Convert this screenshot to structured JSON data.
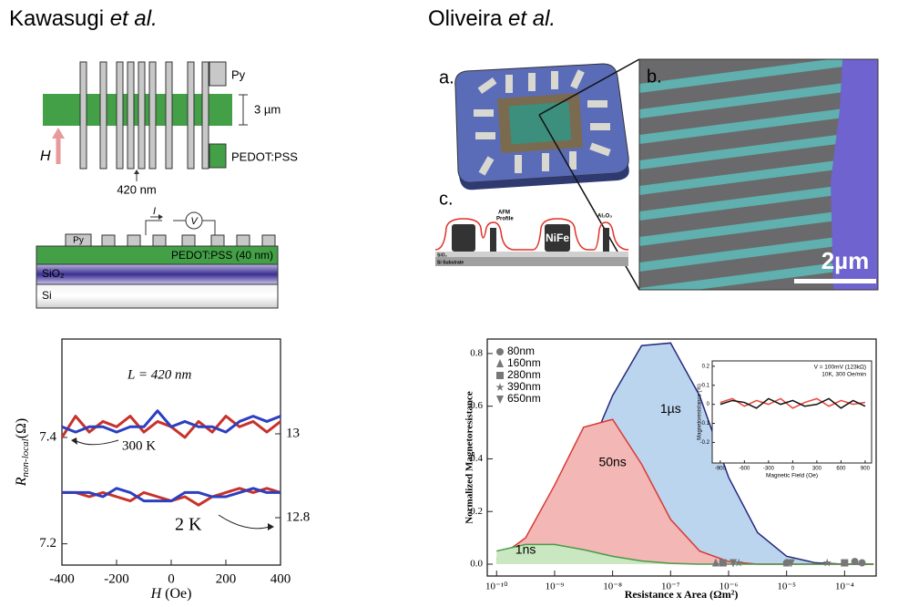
{
  "figure_left": {
    "heading": {
      "author": "Kawasugi",
      "suffix": "et al."
    },
    "schematic": {
      "legend_py": "Py",
      "legend_pedot": "PEDOT:PSS",
      "width_label": "3 µm",
      "field_label": "H",
      "spacing_label": "420 nm"
    },
    "cross_section": {
      "current": "I",
      "voltage": "V",
      "py": "Py",
      "pedot": "PEDOT:PSS (40 nm)",
      "sio2": "SiO₂",
      "si": "Si"
    }
  },
  "figure_right": {
    "heading": {
      "author": "Oliveira",
      "suffix": "et al."
    },
    "panels": {
      "a": "a.",
      "b": "b.",
      "c": "c."
    },
    "profile": {
      "afm": [
        "AFM",
        "Profile"
      ],
      "oxide": "Al₂O₃",
      "metal": "NiFe",
      "sio2": "SiO₂",
      "substrate": "Si Substrate"
    },
    "scale_bar": "2µm"
  },
  "chart_data": [
    {
      "type": "line",
      "x": [
        -400,
        -350,
        -300,
        -250,
        -200,
        -150,
        -100,
        -50,
        0,
        50,
        100,
        150,
        200,
        250,
        300,
        350,
        400
      ],
      "xlim": [
        -400,
        400
      ],
      "xticks": [
        -400,
        -200,
        0,
        200,
        400
      ],
      "ylim": [
        7.16,
        7.585
      ],
      "yticks": [
        7.2,
        7.4
      ],
      "y2lim": [
        12.687,
        13.226
      ],
      "y2ticks": [
        12.8,
        13
      ],
      "xlabel": {
        "symbol": "H",
        "unit": "(Oe)"
      },
      "ylabel": {
        "symbol": "R",
        "subscript": "non-local",
        "unit": "(Ω)"
      },
      "annotations": {
        "length": "L = 420 nm",
        "high_temp": "300 K",
        "low_temp": "2 K"
      },
      "series": [
        {
          "color": "#c8322a",
          "values": [
            7.4,
            7.44,
            7.41,
            7.43,
            7.42,
            7.44,
            7.41,
            7.43,
            7.42,
            7.4,
            7.43,
            7.41,
            7.44,
            7.42,
            7.43,
            7.41,
            7.43
          ]
        },
        {
          "color": "#2b3fbf",
          "values": [
            7.42,
            7.41,
            7.42,
            7.42,
            7.41,
            7.42,
            7.42,
            7.45,
            7.42,
            7.43,
            7.42,
            7.42,
            7.41,
            7.43,
            7.44,
            7.43,
            7.44
          ]
        },
        {
          "color": "#c8322a",
          "axis": "y2",
          "values": [
            12.86,
            12.86,
            12.85,
            12.86,
            12.85,
            12.84,
            12.86,
            12.85,
            12.84,
            12.85,
            12.83,
            12.85,
            12.86,
            12.87,
            12.86,
            12.87,
            12.86
          ]
        },
        {
          "color": "#2b3fbf",
          "axis": "y2",
          "values": [
            12.86,
            12.86,
            12.86,
            12.85,
            12.87,
            12.86,
            12.84,
            12.84,
            12.84,
            12.86,
            12.86,
            12.85,
            12.85,
            12.86,
            12.87,
            12.86,
            12.86
          ]
        }
      ]
    },
    {
      "type": "area",
      "log_x": true,
      "x": [
        1e-10,
        3.16e-10,
        1e-09,
        3.16e-09,
        1e-08,
        3.16e-08,
        1e-07,
        3.16e-07,
        1e-06,
        3.16e-06,
        1e-05,
        3.16e-05,
        0.0001,
        0.000316
      ],
      "xlim": [
        6.9e-11,
        0.00035
      ],
      "xticks": [
        {
          "value": 1e-10,
          "label": "10⁻¹⁰"
        },
        {
          "value": 1e-09,
          "label": "10⁻⁹"
        },
        {
          "value": 1e-08,
          "label": "10⁻⁸"
        },
        {
          "value": 1e-07,
          "label": "10⁻⁷"
        },
        {
          "value": 1e-06,
          "label": "10⁻⁶"
        },
        {
          "value": 1e-05,
          "label": "10⁻⁵"
        },
        {
          "value": 0.0001,
          "label": "10⁻⁴"
        }
      ],
      "ylim": [
        -0.045,
        0.855
      ],
      "yticks": [
        {
          "value": 0,
          "label": "0.0"
        },
        {
          "value": 0.2,
          "label": "0.2"
        },
        {
          "value": 0.4,
          "label": "0.4"
        },
        {
          "value": 0.6,
          "label": "0.6"
        },
        {
          "value": 0.8,
          "label": "0.8"
        }
      ],
      "ylabel": "Normalized Magnetoresistance",
      "xlabel": "Resistance x Area (Ωm²)",
      "series": [
        {
          "label": "1µs",
          "color": "#bcd5ef",
          "line_color": "#26297c",
          "values": [
            0.02,
            0.06,
            0.17,
            0.38,
            0.64,
            0.83,
            0.84,
            0.64,
            0.33,
            0.12,
            0.03,
            0.005,
            0,
            0
          ]
        },
        {
          "label": "50ns",
          "color": "#f3b7b5",
          "line_color": "#d83a35",
          "values": [
            0.02,
            0.1,
            0.3,
            0.52,
            0.55,
            0.38,
            0.17,
            0.05,
            0.01,
            0,
            0,
            0,
            0,
            0
          ]
        },
        {
          "label": "1ns",
          "color": "#c9e7c0",
          "line_color": "#4a9a48",
          "values": [
            0.05,
            0.075,
            0.075,
            0.055,
            0.03,
            0.012,
            0.003,
            0,
            0,
            0,
            0,
            0,
            0,
            0
          ]
        }
      ],
      "markers": {
        "legend": "top-left",
        "color": "#777777",
        "series": [
          {
            "name": "80nm",
            "marker": "circle",
            "x": [
              1e-05,
              0.00015,
              0.0002
            ],
            "values": [
              0.005,
              0.01,
              0.005
            ]
          },
          {
            "name": "160nm",
            "marker": "triangle",
            "x": [
              6e-07,
              1e-05
            ],
            "values": [
              0.005,
              0.005
            ]
          },
          {
            "name": "280nm",
            "marker": "square",
            "x": [
              8e-07,
              0.0001
            ],
            "values": [
              0.005,
              0.005
            ]
          },
          {
            "name": "390nm",
            "marker": "star",
            "x": [
              1.5e-06,
              5e-05
            ],
            "values": [
              0.005,
              0.005
            ]
          },
          {
            "name": "650nm",
            "marker": "triangle-down",
            "x": [
              1.2e-06,
              1.2e-05
            ],
            "values": [
              0.005,
              0.005
            ]
          }
        ]
      }
    },
    {
      "type": "line",
      "x": [
        -900,
        -750,
        -600,
        -450,
        -300,
        -150,
        0,
        150,
        300,
        450,
        600,
        750,
        900
      ],
      "xlim": [
        -1000,
        980
      ],
      "xticks": [
        -900,
        -600,
        -300,
        0,
        300,
        600,
        900
      ],
      "ylim": [
        -0.308,
        0.228
      ],
      "yticks": [
        0.2,
        0.1,
        0,
        -0.1,
        -0.2
      ],
      "xlabel": "Magnetic Field (Oe)",
      "ylabel": "Magnetoresistance (%)",
      "annotations": {
        "bias": "V = 100mV (123kΩ)",
        "conditions": "10K, 300 Oe/min"
      },
      "series": [
        {
          "color": "#e8463a",
          "values": [
            0.01,
            0.03,
            -0.01,
            0.02,
            0.0,
            0.03,
            -0.02,
            0.01,
            0.03,
            -0.01,
            0.02,
            0.0,
            0.01
          ]
        },
        {
          "color": "#111111",
          "values": [
            0.0,
            0.02,
            0.01,
            -0.02,
            0.03,
            0.0,
            0.02,
            -0.01,
            0.0,
            0.03,
            -0.02,
            0.02,
            -0.01
          ]
        }
      ]
    }
  ]
}
